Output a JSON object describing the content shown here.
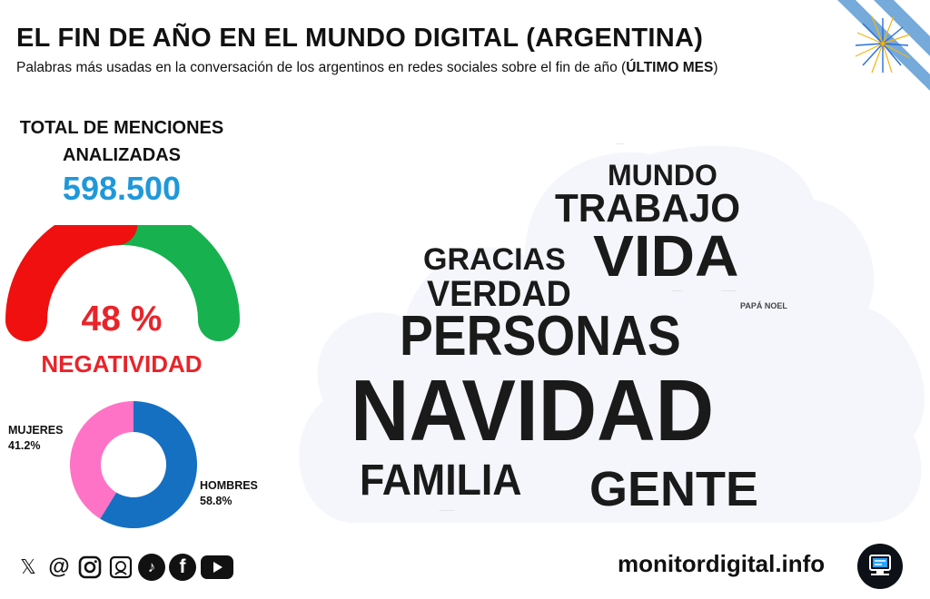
{
  "header": {
    "title": "EL FIN DE AÑO EN EL MUNDO DIGITAL (ARGENTINA)",
    "subtitle_prefix": "Palabras más usadas en la conversación de los argentinos en redes sociales sobre el fin de año (",
    "subtitle_bold": "ÚLTIMO MES",
    "subtitle_suffix": ")"
  },
  "stats": {
    "label_line1": "TOTAL DE MENCIONES",
    "label_line2": "ANALIZADAS",
    "total_mentions": "598.500"
  },
  "sentiment": {
    "negativity_percent": 48,
    "percent_label": "48 %",
    "label": "NEGATIVIDAD",
    "colors": {
      "negative": "#f01010",
      "positive": "#17b14f"
    }
  },
  "gender": {
    "women": {
      "label": "MUJERES",
      "value_label": "41.2%",
      "value": 41.2,
      "color": "#ff73c6"
    },
    "men": {
      "label": "HOMBRES",
      "value_label": "58.8%",
      "value": 58.8,
      "color": "#1570c2"
    }
  },
  "word_cloud": {
    "words": [
      {
        "text": "NAVIDAD"
      },
      {
        "text": "PERSONAS"
      },
      {
        "text": "FAMILIA"
      },
      {
        "text": "GENTE"
      },
      {
        "text": "VIDA"
      },
      {
        "text": "TRABAJO"
      },
      {
        "text": "MUNDO"
      },
      {
        "text": "GRACIAS"
      },
      {
        "text": "VERDAD"
      },
      {
        "text": "PAPÁ NOEL"
      }
    ],
    "cloud_color": "#f4f6fb"
  },
  "social_icons": [
    "x-icon",
    "threads-icon",
    "instagram-icon",
    "gallery-icon",
    "tiktok-icon",
    "facebook-icon",
    "youtube-icon"
  ],
  "footer": {
    "site": "monitordigital.info"
  },
  "flag_colors": {
    "sky_blue": "#75aadb",
    "white": "#ffffff",
    "sun": "#f6b40e"
  }
}
